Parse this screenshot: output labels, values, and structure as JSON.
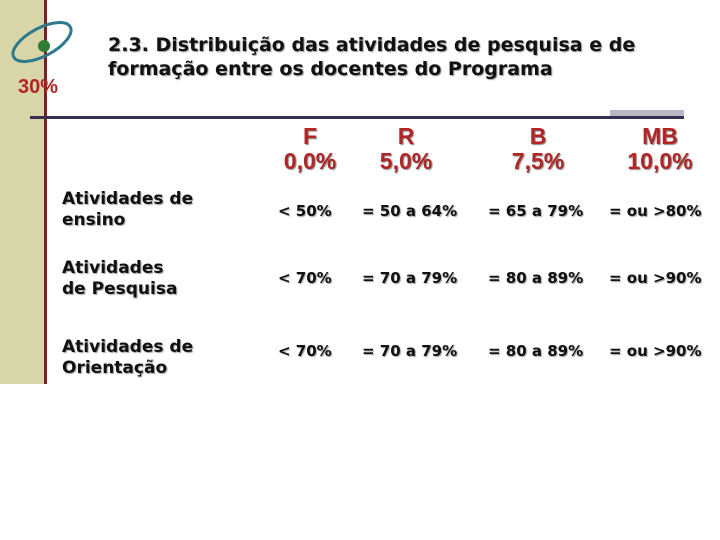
{
  "logo": {
    "text": "30%",
    "accent_color": "#b32525",
    "ring_color": "#2d7a8c",
    "dot_color": "#2e7d32"
  },
  "title": {
    "line1": "2.3. Distribuição das atividades de pesquisa e de",
    "line2": "formação entre os docentes do Programa"
  },
  "columns": [
    {
      "letter": "F",
      "pct": "0,0%"
    },
    {
      "letter": "R",
      "pct": "5,0%"
    },
    {
      "letter": "B",
      "pct": "7,5%"
    },
    {
      "letter": "MB",
      "pct": "10,0%"
    }
  ],
  "rows": [
    {
      "label_line1": "Atividades de",
      "label_line2": "ensino",
      "cells": [
        "< 50%",
        "= 50 a 64%",
        "= 65 a 79%",
        "= ou >80%"
      ]
    },
    {
      "label_line1": "Atividades",
      "label_line2": "de Pesquisa",
      "cells": [
        "< 70%",
        "= 70 a 79%",
        "= 80 a 89%",
        "= ou >90%"
      ]
    },
    {
      "label_line1": "Atividades de",
      "label_line2": "Orientação",
      "cells": [
        "< 70%",
        "= 70 a 79%",
        "= 80 a 89%",
        "= ou >90%"
      ]
    }
  ]
}
